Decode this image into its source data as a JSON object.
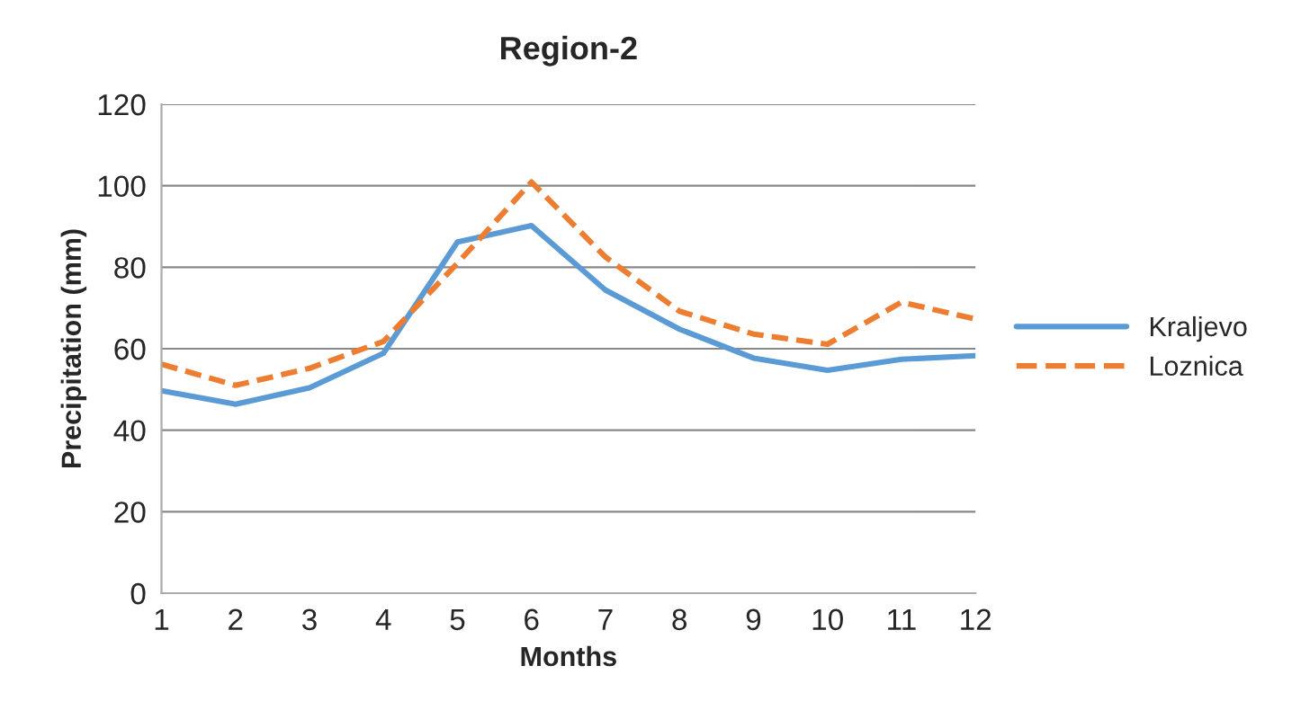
{
  "chart_data": {
    "type": "line",
    "title": "Region-2",
    "xlabel": "Months",
    "ylabel": "Precipitation (mm)",
    "x": [
      1,
      2,
      3,
      4,
      5,
      6,
      7,
      8,
      9,
      10,
      11,
      12
    ],
    "series": [
      {
        "name": "Kraljevo",
        "color": "#5b9bd5",
        "line_style": "solid",
        "values": [
          49.7,
          46.4,
          50.4,
          58.9,
          86.2,
          90.2,
          74.4,
          64.8,
          57.7,
          54.7,
          57.4,
          58.3
        ]
      },
      {
        "name": "Loznica",
        "color": "#ed7d31",
        "line_style": "dashed",
        "values": [
          56.2,
          51.0,
          55.2,
          61.8,
          81.0,
          100.9,
          82.5,
          69.2,
          63.6,
          61.1,
          71.4,
          67.3
        ]
      }
    ],
    "xlim": [
      1,
      12
    ],
    "xticks": [
      1,
      2,
      3,
      4,
      5,
      6,
      7,
      8,
      9,
      10,
      11,
      12
    ],
    "ylim": [
      0,
      120
    ],
    "yticks": [
      0,
      20,
      40,
      60,
      80,
      100,
      120
    ],
    "grid": "y",
    "legend": "right",
    "marker": "none"
  }
}
